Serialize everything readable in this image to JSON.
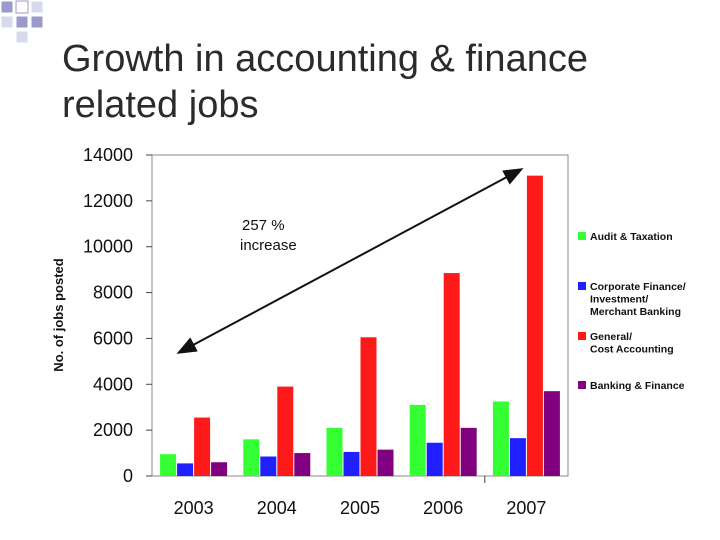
{
  "slide": {
    "title_line1": "Growth in accounting & finance",
    "title_line2": "related jobs"
  },
  "chart_data": {
    "type": "bar",
    "categories": [
      "2003",
      "2004",
      "2005",
      "2006",
      "2007"
    ],
    "ylabel": "No. of jobs posted",
    "ylim": [
      0,
      14000
    ],
    "yticks": [
      0,
      2000,
      4000,
      6000,
      8000,
      10000,
      12000,
      14000
    ],
    "grid": false,
    "legend_position": "right",
    "series": [
      {
        "name": "Audit & Taxation",
        "color": "#33ff33",
        "values": [
          950,
          1600,
          2100,
          3100,
          3250
        ]
      },
      {
        "name": "Corporate Finance/ Investment/ Merchant Banking",
        "color": "#1f1fff",
        "values": [
          550,
          850,
          1050,
          1450,
          1650
        ]
      },
      {
        "name": "General/ Cost Accounting",
        "color": "#ff1a1a",
        "values": [
          2550,
          3900,
          6050,
          8850,
          13100
        ]
      },
      {
        "name": "Banking & Finance",
        "color": "#800080",
        "values": [
          600,
          1000,
          1150,
          2100,
          3700
        ]
      }
    ],
    "annotations": [
      {
        "text_line1": "257 %",
        "text_line2": "increase"
      }
    ]
  }
}
